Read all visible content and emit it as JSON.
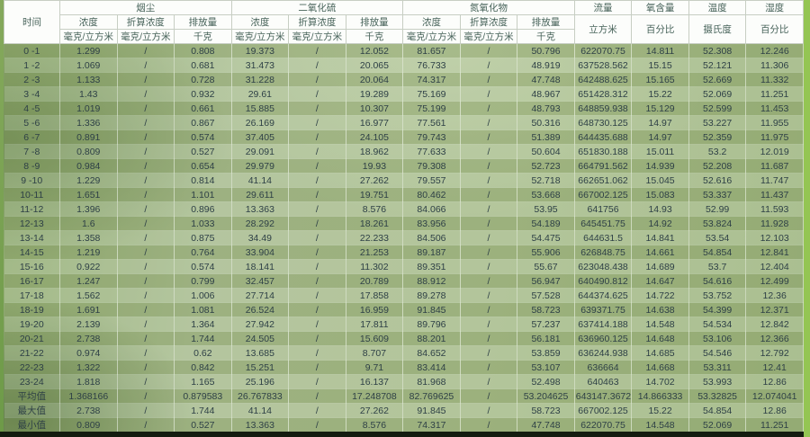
{
  "colors": {
    "header_bg": "#fcfdfb",
    "header_text": "#47635a",
    "body_text": "#2e4046",
    "row_dark": "#9db37f",
    "row_light": "#abbd95",
    "left_edge_green": "#7aa352",
    "scrollbar_green": "#94c553",
    "bottom_bar": "#141c10"
  },
  "table": {
    "time_header": "时间",
    "groups": [
      {
        "label": "烟尘",
        "cols": [
          {
            "label": "浓度",
            "unit": "毫克/立方米"
          },
          {
            "label": "折算浓度",
            "unit": "毫克/立方米"
          },
          {
            "label": "排放量",
            "unit": "千克"
          }
        ]
      },
      {
        "label": "二氧化硫",
        "cols": [
          {
            "label": "浓度",
            "unit": "毫克/立方米"
          },
          {
            "label": "折算浓度",
            "unit": "毫克/立方米"
          },
          {
            "label": "排放量",
            "unit": "千克"
          }
        ]
      },
      {
        "label": "氮氧化物",
        "cols": [
          {
            "label": "浓度",
            "unit": "毫克/立方米"
          },
          {
            "label": "折算浓度",
            "unit": "毫克/立方米"
          },
          {
            "label": "排放量",
            "unit": "千克"
          }
        ]
      }
    ],
    "singles": [
      {
        "label": "流量",
        "unit": "立方米"
      },
      {
        "label": "氧含量",
        "unit": "百分比"
      },
      {
        "label": "温度",
        "unit": "摄氏度"
      },
      {
        "label": "湿度",
        "unit": "百分比"
      }
    ],
    "rows": [
      [
        "0 -1",
        "1.299",
        "/",
        "0.808",
        "19.373",
        "/",
        "12.052",
        "81.657",
        "/",
        "50.796",
        "622070.75",
        "14.811",
        "52.308",
        "12.246"
      ],
      [
        "1 -2",
        "1.069",
        "/",
        "0.681",
        "31.473",
        "/",
        "20.065",
        "76.733",
        "/",
        "48.919",
        "637528.562",
        "15.15",
        "52.121",
        "11.306"
      ],
      [
        "2 -3",
        "1.133",
        "/",
        "0.728",
        "31.228",
        "/",
        "20.064",
        "74.317",
        "/",
        "47.748",
        "642488.625",
        "15.165",
        "52.669",
        "11.332"
      ],
      [
        "3 -4",
        "1.43",
        "/",
        "0.932",
        "29.61",
        "/",
        "19.289",
        "75.169",
        "/",
        "48.967",
        "651428.312",
        "15.22",
        "52.069",
        "11.251"
      ],
      [
        "4 -5",
        "1.019",
        "/",
        "0.661",
        "15.885",
        "/",
        "10.307",
        "75.199",
        "/",
        "48.793",
        "648859.938",
        "15.129",
        "52.599",
        "11.453"
      ],
      [
        "5 -6",
        "1.336",
        "/",
        "0.867",
        "26.169",
        "/",
        "16.977",
        "77.561",
        "/",
        "50.316",
        "648730.125",
        "14.97",
        "53.227",
        "11.955"
      ],
      [
        "6 -7",
        "0.891",
        "/",
        "0.574",
        "37.405",
        "/",
        "24.105",
        "79.743",
        "/",
        "51.389",
        "644435.688",
        "14.97",
        "52.359",
        "11.975"
      ],
      [
        "7 -8",
        "0.809",
        "/",
        "0.527",
        "29.091",
        "/",
        "18.962",
        "77.633",
        "/",
        "50.604",
        "651830.188",
        "15.011",
        "53.2",
        "12.019"
      ],
      [
        "8 -9",
        "0.984",
        "/",
        "0.654",
        "29.979",
        "/",
        "19.93",
        "79.308",
        "/",
        "52.723",
        "664791.562",
        "14.939",
        "52.208",
        "11.687"
      ],
      [
        "9 -10",
        "1.229",
        "/",
        "0.814",
        "41.14",
        "/",
        "27.262",
        "79.557",
        "/",
        "52.718",
        "662651.062",
        "15.045",
        "52.616",
        "11.747"
      ],
      [
        "10-11",
        "1.651",
        "/",
        "1.101",
        "29.611",
        "/",
        "19.751",
        "80.462",
        "/",
        "53.668",
        "667002.125",
        "15.083",
        "53.337",
        "11.437"
      ],
      [
        "11-12",
        "1.396",
        "/",
        "0.896",
        "13.363",
        "/",
        "8.576",
        "84.066",
        "/",
        "53.95",
        "641756",
        "14.93",
        "52.99",
        "11.593"
      ],
      [
        "12-13",
        "1.6",
        "/",
        "1.033",
        "28.292",
        "/",
        "18.261",
        "83.956",
        "/",
        "54.189",
        "645451.75",
        "14.92",
        "53.824",
        "11.928"
      ],
      [
        "13-14",
        "1.358",
        "/",
        "0.875",
        "34.49",
        "/",
        "22.233",
        "84.506",
        "/",
        "54.475",
        "644631.5",
        "14.841",
        "53.54",
        "12.103"
      ],
      [
        "14-15",
        "1.219",
        "/",
        "0.764",
        "33.904",
        "/",
        "21.253",
        "89.187",
        "/",
        "55.906",
        "626848.75",
        "14.661",
        "54.854",
        "12.841"
      ],
      [
        "15-16",
        "0.922",
        "/",
        "0.574",
        "18.141",
        "/",
        "11.302",
        "89.351",
        "/",
        "55.67",
        "623048.438",
        "14.689",
        "53.7",
        "12.404"
      ],
      [
        "16-17",
        "1.247",
        "/",
        "0.799",
        "32.457",
        "/",
        "20.789",
        "88.912",
        "/",
        "56.947",
        "640490.812",
        "14.647",
        "54.616",
        "12.499"
      ],
      [
        "17-18",
        "1.562",
        "/",
        "1.006",
        "27.714",
        "/",
        "17.858",
        "89.278",
        "/",
        "57.528",
        "644374.625",
        "14.722",
        "53.752",
        "12.36"
      ],
      [
        "18-19",
        "1.691",
        "/",
        "1.081",
        "26.524",
        "/",
        "16.959",
        "91.845",
        "/",
        "58.723",
        "639371.75",
        "14.638",
        "54.399",
        "12.371"
      ],
      [
        "19-20",
        "2.139",
        "/",
        "1.364",
        "27.942",
        "/",
        "17.811",
        "89.796",
        "/",
        "57.237",
        "637414.188",
        "14.548",
        "54.534",
        "12.842"
      ],
      [
        "20-21",
        "2.738",
        "/",
        "1.744",
        "24.505",
        "/",
        "15.609",
        "88.201",
        "/",
        "56.181",
        "636960.125",
        "14.648",
        "53.106",
        "12.366"
      ],
      [
        "21-22",
        "0.974",
        "/",
        "0.62",
        "13.685",
        "/",
        "8.707",
        "84.652",
        "/",
        "53.859",
        "636244.938",
        "14.685",
        "54.546",
        "12.792"
      ],
      [
        "22-23",
        "1.322",
        "/",
        "0.842",
        "15.251",
        "/",
        "9.71",
        "83.414",
        "/",
        "53.107",
        "636664",
        "14.668",
        "53.311",
        "12.41"
      ],
      [
        "23-24",
        "1.818",
        "/",
        "1.165",
        "25.196",
        "/",
        "16.137",
        "81.968",
        "/",
        "52.498",
        "640463",
        "14.702",
        "53.993",
        "12.86"
      ],
      [
        "平均值",
        "1.368166",
        "/",
        "0.879583",
        "26.767833",
        "/",
        "17.248708",
        "82.769625",
        "/",
        "53.204625",
        "643147.367208",
        "14.866333",
        "53.32825",
        "12.074041"
      ],
      [
        "最大值",
        "2.738",
        "/",
        "1.744",
        "41.14",
        "/",
        "27.262",
        "91.845",
        "/",
        "58.723",
        "667002.125",
        "15.22",
        "54.854",
        "12.86"
      ],
      [
        "最小值",
        "0.809",
        "/",
        "0.527",
        "13.363",
        "/",
        "8.576",
        "74.317",
        "/",
        "47.748",
        "622070.75",
        "14.548",
        "52.069",
        "11.251"
      ]
    ]
  }
}
